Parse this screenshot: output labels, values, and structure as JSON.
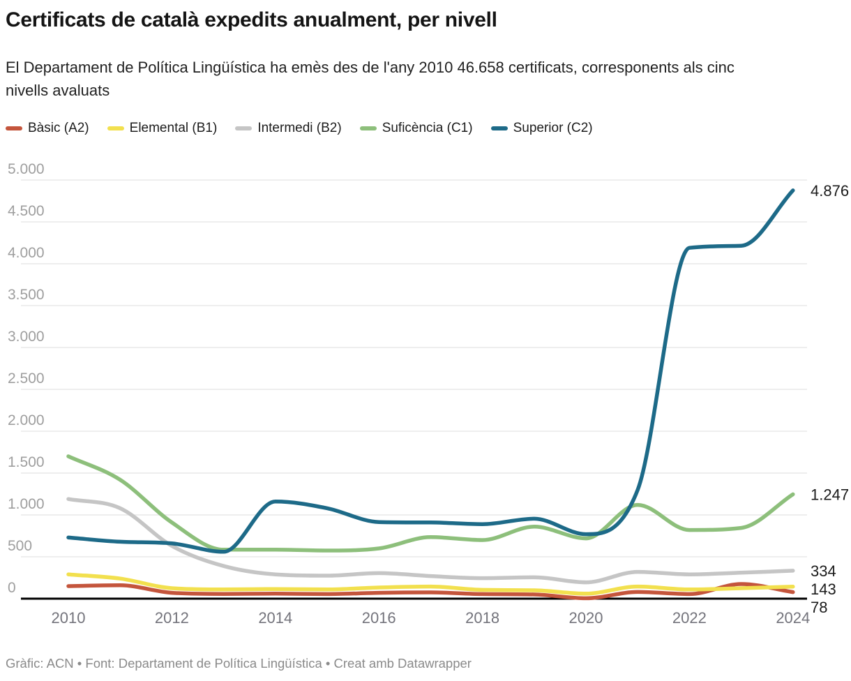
{
  "header": {
    "title": "Certificats de català expedits anualment, per nivell",
    "subtitle": "El Departament de Política Lingüística ha emès des de l'any 2010 46.658 certificats, corresponents als cinc nivells avaluats"
  },
  "footer": {
    "credit": "Gràfic: ACN • Font: Departament de Política Lingüística • Creat amb Datawrapper"
  },
  "chart_data": {
    "type": "line",
    "title": "Certificats de català expedits anualment, per nivell",
    "x": [
      2010,
      2011,
      2012,
      2013,
      2014,
      2015,
      2016,
      2017,
      2018,
      2019,
      2020,
      2021,
      2022,
      2023,
      2024
    ],
    "x_tick_labels": [
      "2010",
      "2012",
      "2014",
      "2016",
      "2018",
      "2020",
      "2022",
      "2024"
    ],
    "y_ticks": [
      0,
      500,
      1000,
      1500,
      2000,
      2500,
      3000,
      3500,
      4000,
      4500,
      5000
    ],
    "y_tick_labels": [
      "0",
      "500",
      "1.000",
      "1.500",
      "2.000",
      "2.500",
      "3.000",
      "3.500",
      "4.000",
      "4.500",
      "5.000"
    ],
    "ylim": [
      0,
      5000
    ],
    "grid": "horizontal",
    "legend_position": "top",
    "colors": {
      "axis": "#000000",
      "gridline": "#e9e9e9",
      "end_label": "#1a1a1a"
    },
    "series": [
      {
        "name": "Bàsic (A2)",
        "color": "#c4553c",
        "values": [
          150,
          160,
          70,
          57,
          60,
          55,
          70,
          75,
          55,
          50,
          5,
          80,
          55,
          175,
          78
        ],
        "end_label": "78"
      },
      {
        "name": "Elemental (B1)",
        "color": "#f2e04e",
        "values": [
          290,
          240,
          125,
          110,
          115,
          110,
          133,
          145,
          105,
          100,
          60,
          145,
          110,
          125,
          143
        ],
        "end_label": "143"
      },
      {
        "name": "Intermedi (B2)",
        "color": "#c5c5c5",
        "values": [
          1190,
          1080,
          630,
          390,
          290,
          275,
          305,
          270,
          245,
          255,
          195,
          320,
          290,
          310,
          334
        ],
        "end_label": "334"
      },
      {
        "name": "Suficència (C1)",
        "color": "#8dbf7b",
        "values": [
          1700,
          1420,
          910,
          585,
          585,
          575,
          600,
          735,
          700,
          860,
          720,
          1120,
          820,
          845,
          1247
        ],
        "end_label": "1.247"
      },
      {
        "name": "Superior (C2)",
        "color": "#1d6a88",
        "values": [
          730,
          680,
          660,
          560,
          1160,
          1080,
          915,
          910,
          890,
          955,
          770,
          1300,
          4190,
          4215,
          4876
        ],
        "end_label": "4.876"
      }
    ]
  }
}
